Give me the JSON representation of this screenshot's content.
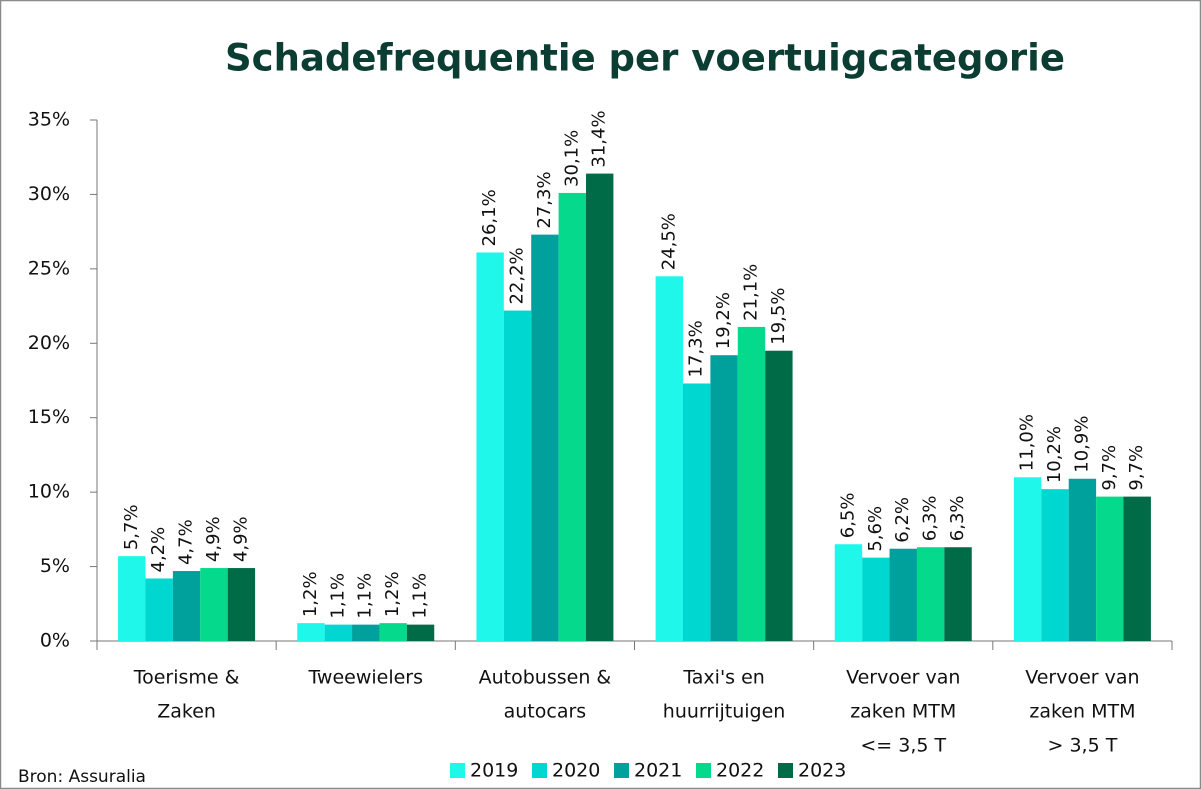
{
  "chart_data": {
    "type": "bar",
    "title": "Schadefrequentie per voertuigcategorie",
    "source": "Bron: Assuralia",
    "categories": [
      [
        "Toerisme &",
        "Zaken"
      ],
      [
        "Tweewielers"
      ],
      [
        "Autobussen &",
        "autocars"
      ],
      [
        "Taxi's en",
        "huurrijtuigen"
      ],
      [
        "Vervoer van",
        "zaken MTM",
        "<= 3,5 T"
      ],
      [
        "Vervoer van",
        "zaken MTM",
        "> 3,5 T"
      ]
    ],
    "series": [
      {
        "name": "2019",
        "color": "#1ef7ea",
        "values": [
          5.7,
          1.2,
          26.1,
          24.5,
          6.5,
          11.0
        ],
        "value_labels": [
          "5,7%",
          "1,2%",
          "26,1%",
          "24,5%",
          "6,5%",
          "11,0%"
        ]
      },
      {
        "name": "2020",
        "color": "#00d7d0",
        "values": [
          4.2,
          1.1,
          22.2,
          17.3,
          5.6,
          10.2
        ],
        "value_labels": [
          "4,2%",
          "1,1%",
          "22,2%",
          "17,3%",
          "5,6%",
          "10,2%"
        ]
      },
      {
        "name": "2021",
        "color": "#00a19c",
        "values": [
          4.7,
          1.1,
          27.3,
          19.2,
          6.2,
          10.9
        ],
        "value_labels": [
          "4,7%",
          "1,1%",
          "27,3%",
          "19,2%",
          "6,2%",
          "10,9%"
        ]
      },
      {
        "name": "2022",
        "color": "#04d98c",
        "values": [
          4.9,
          1.2,
          30.1,
          21.1,
          6.3,
          9.7
        ],
        "value_labels": [
          "4,9%",
          "1,2%",
          "30,1%",
          "21,1%",
          "6,3%",
          "9,7%"
        ]
      },
      {
        "name": "2023",
        "color": "#006b47",
        "values": [
          4.9,
          1.1,
          31.4,
          19.5,
          6.3,
          9.7
        ],
        "value_labels": [
          "4,9%",
          "1,1%",
          "31,4%",
          "19,5%",
          "6,3%",
          "9,7%"
        ]
      }
    ],
    "ylim": [
      0,
      35
    ],
    "yticks": [
      {
        "value": 0,
        "label": "0%"
      },
      {
        "value": 5,
        "label": "5%"
      },
      {
        "value": 10,
        "label": "10%"
      },
      {
        "value": 15,
        "label": "15%"
      },
      {
        "value": 20,
        "label": "20%"
      },
      {
        "value": 25,
        "label": "25%"
      },
      {
        "value": 30,
        "label": "30%"
      },
      {
        "value": 35,
        "label": "35%"
      }
    ],
    "legend": "bottom"
  }
}
